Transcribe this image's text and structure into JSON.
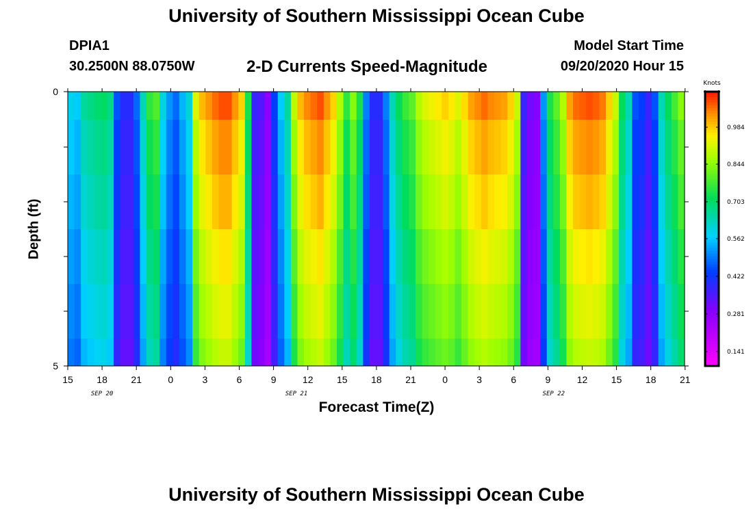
{
  "header": {
    "title": "University of Southern Mississippi Ocean Cube",
    "title_bottom": "University of Southern Mississippi Ocean Cube",
    "station": "DPIA1",
    "coords": "30.2500N 88.0750W",
    "subtitle": "2-D Currents Speed-Magnitude",
    "model_start_label": "Model Start Time",
    "model_start_value": "09/20/2020 Hour 15"
  },
  "chart_data": {
    "type": "heatmap",
    "title": "2-D Currents Speed-Magnitude",
    "xlabel": "Forecast Time(Z)",
    "ylabel": "Depth (ft)",
    "ylim": [
      0,
      5
    ],
    "y_ticks": [
      "0",
      "5"
    ],
    "x_tick_labels": [
      "15",
      "18",
      "21",
      "0",
      "3",
      "6",
      "9",
      "12",
      "15",
      "18",
      "21",
      "0",
      "3",
      "6",
      "9",
      "12",
      "15",
      "18",
      "21"
    ],
    "date_labels": [
      {
        "label": "SEP 20",
        "hour_index": 3
      },
      {
        "label": "SEP 21",
        "hour_index": 20
      },
      {
        "label": "SEP 22",
        "hour_index": 42.5
      }
    ],
    "time_start": "09/20/2020 15Z",
    "time_step_hours": 1,
    "depth_levels": 5,
    "speed_units": "Knots",
    "colorbar_ticks": [
      "0.984",
      "0.844",
      "0.703",
      "0.562",
      "0.422",
      "0.281",
      "0.141"
    ],
    "value_range": [
      0.07,
      1.1
    ],
    "surface_speed_knots": [
      0.57,
      0.55,
      0.64,
      0.66,
      0.68,
      0.69,
      0.66,
      0.44,
      0.38,
      0.38,
      0.46,
      0.62,
      0.74,
      0.77,
      0.58,
      0.5,
      0.46,
      0.53,
      0.59,
      0.9,
      0.98,
      1.01,
      1.04,
      1.06,
      1.06,
      1.01,
      0.96,
      0.72,
      0.36,
      0.33,
      0.27,
      0.42,
      0.55,
      0.64,
      0.87,
      0.98,
      1.02,
      1.04,
      1.06,
      1.01,
      0.96,
      0.86,
      0.74,
      0.82,
      0.72,
      0.48,
      0.38,
      0.38,
      0.48,
      0.62,
      0.7,
      0.75,
      0.78,
      0.86,
      0.9,
      0.92,
      0.94,
      0.96,
      0.94,
      0.9,
      0.95,
      1.0,
      1.02,
      1.04,
      1.02,
      1.01,
      1.0,
      0.96,
      0.88,
      0.36,
      0.3,
      0.28,
      0.5,
      0.72,
      0.78,
      0.86,
      1.0,
      1.04,
      1.05,
      1.06,
      1.05,
      1.03,
      0.96,
      0.88,
      0.7,
      0.62,
      0.44,
      0.42,
      0.36,
      0.44,
      0.62,
      0.7,
      0.76,
      0.82
    ],
    "depth_speed_factors": [
      1.0,
      0.96,
      0.93,
      0.89,
      0.86,
      0.83
    ]
  },
  "icons": {
    "colorbar_top_marker": "dot",
    "colorbar_bottom_marker": "dot"
  }
}
